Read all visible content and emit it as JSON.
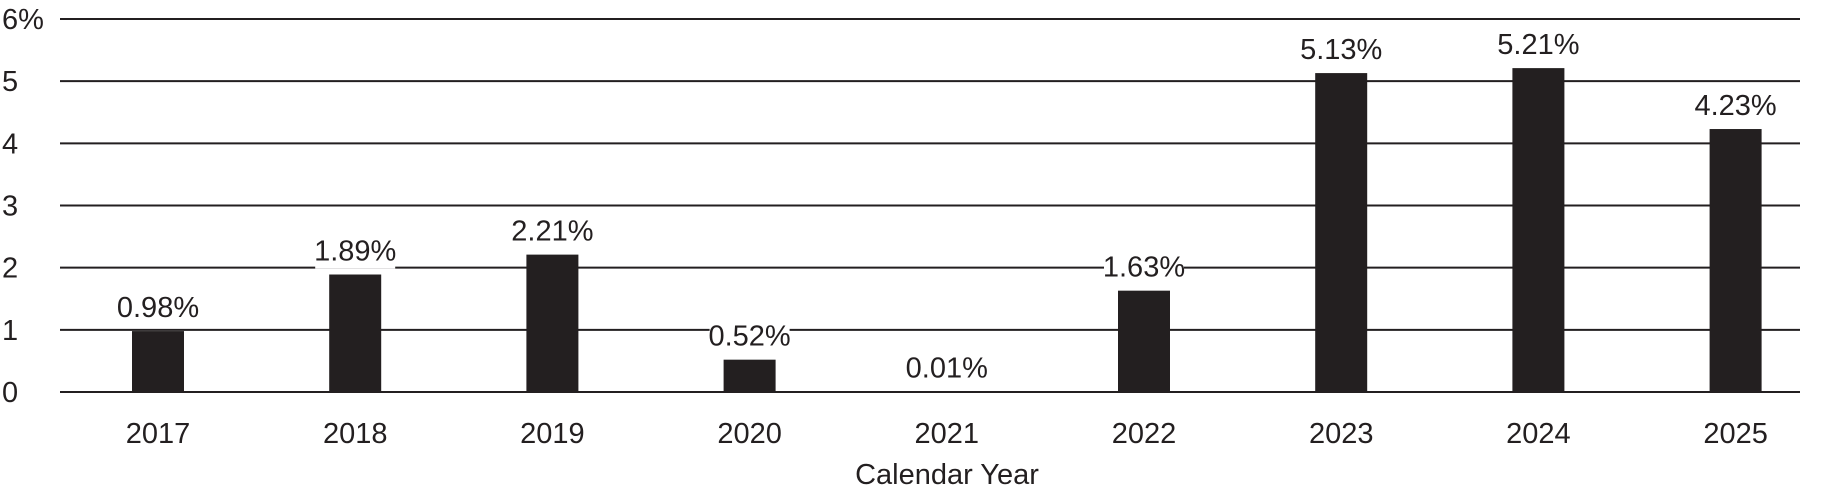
{
  "chart_data": {
    "type": "bar",
    "categories": [
      "2017",
      "2018",
      "2019",
      "2020",
      "2021",
      "2022",
      "2023",
      "2024",
      "2025"
    ],
    "values": [
      0.98,
      1.89,
      2.21,
      0.52,
      0.01,
      1.63,
      5.13,
      5.21,
      4.23
    ],
    "data_labels": [
      "0.98%",
      "1.89%",
      "2.21%",
      "0.52%",
      "0.01%",
      "1.63%",
      "5.13%",
      "5.21%",
      "4.23%"
    ],
    "xlabel": "Calendar Year",
    "ylabel": "",
    "ylim": [
      0,
      6
    ],
    "y_ticks": [
      0,
      1,
      2,
      3,
      4,
      5,
      6
    ],
    "y_tick_labels": [
      "0",
      "1",
      "2",
      "3",
      "4",
      "5",
      "6%"
    ],
    "grid": true,
    "legend": "none",
    "colors": {
      "bar": "#231f20",
      "grid": "#231f20",
      "text": "#231f20",
      "background": "#ffffff"
    }
  }
}
